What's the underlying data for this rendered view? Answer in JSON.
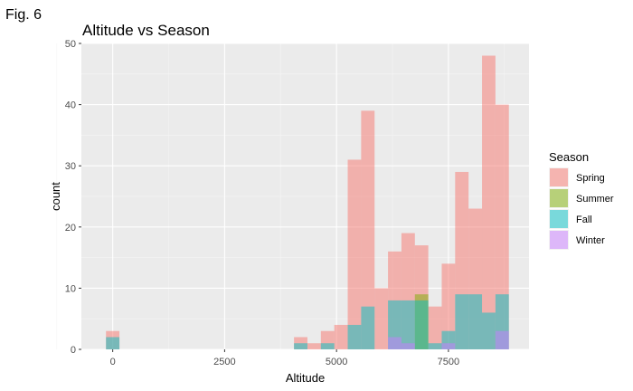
{
  "figure_label": "Fig. 6",
  "chart_data": {
    "type": "histogram",
    "title": "Altitude vs Season",
    "xlabel": "Altitude",
    "ylabel": "count",
    "xlim": [
      -700,
      9300
    ],
    "ylim": [
      0,
      50
    ],
    "x_ticks": [
      0,
      2500,
      5000,
      7500
    ],
    "x_tick_labels": [
      "0",
      "2500",
      "5000",
      "7500"
    ],
    "y_ticks": [
      0,
      10,
      20,
      30,
      40,
      50
    ],
    "y_tick_labels": [
      "0",
      "10",
      "20",
      "30",
      "40",
      "50"
    ],
    "grid": true,
    "overlay": "identity",
    "alpha": 0.5,
    "legend": {
      "title": "Season",
      "position": "right"
    },
    "bin_width": 300,
    "bin_starts": [
      -150,
      4050,
      4350,
      4650,
      4950,
      5250,
      5550,
      5850,
      6150,
      6450,
      6750,
      7050,
      7350,
      7650,
      7950,
      8250,
      8550
    ],
    "series": [
      {
        "name": "Spring",
        "color": "#F8766D",
        "values": [
          3,
          2,
          1,
          3,
          4,
          31,
          39,
          10,
          16,
          19,
          17,
          7,
          14,
          29,
          23,
          48,
          40
        ]
      },
      {
        "name": "Summer",
        "color": "#7CAE00",
        "values": [
          0,
          0,
          0,
          0,
          0,
          0,
          0,
          0,
          0,
          0,
          9,
          0,
          0,
          0,
          0,
          0,
          0
        ]
      },
      {
        "name": "Fall",
        "color": "#00BFC4",
        "values": [
          2,
          1,
          0,
          1,
          0,
          4,
          7,
          0,
          8,
          8,
          8,
          1,
          3,
          9,
          9,
          6,
          9
        ]
      },
      {
        "name": "Winter",
        "color": "#C77CFF",
        "values": [
          0,
          0,
          0,
          0,
          0,
          0,
          0,
          0,
          2,
          1,
          0,
          0,
          1,
          0,
          0,
          0,
          3
        ]
      }
    ]
  }
}
